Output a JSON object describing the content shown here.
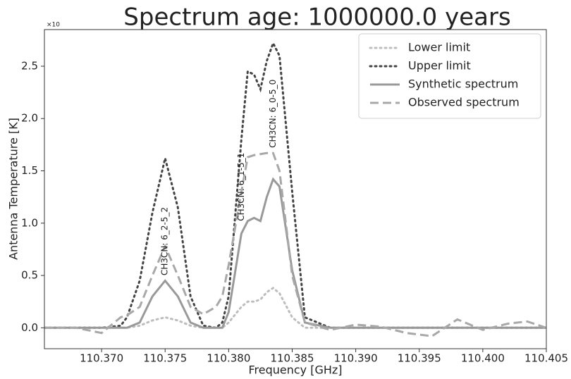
{
  "chart_data": {
    "type": "line",
    "title": "Spectrum  age: 1000000.0 years",
    "offset_text": "×10",
    "x_label": "Frequency [GHz]",
    "y_label": "Antenna Temperature [K]",
    "xlim": [
      110.3655,
      110.405
    ],
    "ylim": [
      -0.2,
      2.85
    ],
    "xticks": [
      {
        "value": 110.37,
        "label": "110.370"
      },
      {
        "value": 110.375,
        "label": "110.375"
      },
      {
        "value": 110.38,
        "label": "110.380"
      },
      {
        "value": 110.385,
        "label": "110.385"
      },
      {
        "value": 110.39,
        "label": "110.390"
      },
      {
        "value": 110.395,
        "label": "110.395"
      },
      {
        "value": 110.4,
        "label": "110.400"
      },
      {
        "value": 110.405,
        "label": "110.405"
      }
    ],
    "yticks": [
      {
        "value": 0,
        "label": "0.0"
      },
      {
        "value": 0.5,
        "label": "0.5"
      },
      {
        "value": 1,
        "label": "1.0"
      },
      {
        "value": 1.5,
        "label": "1.5"
      },
      {
        "value": 2,
        "label": "2.0"
      },
      {
        "value": 2.5,
        "label": "2.5"
      }
    ],
    "legend": "upper right",
    "x": [
      110.3655,
      110.368,
      110.37,
      110.3715,
      110.372,
      110.373,
      110.374,
      110.375,
      110.376,
      110.377,
      110.378,
      110.379,
      110.3795,
      110.38,
      110.381,
      110.3815,
      110.382,
      110.3825,
      110.383,
      110.3835,
      110.384,
      110.385,
      110.386,
      110.388,
      110.39,
      110.392,
      110.394,
      110.396,
      110.398,
      110.4,
      110.402,
      110.4035,
      110.405
    ],
    "series": [
      {
        "name": "Lower limit",
        "color": "#bdbdbd",
        "style": "dotted",
        "values": [
          0,
          0,
          0,
          0,
          0,
          0.02,
          0.07,
          0.1,
          0.07,
          0.02,
          0,
          0,
          0,
          0.05,
          0.2,
          0.25,
          0.25,
          0.27,
          0.34,
          0.38,
          0.33,
          0.1,
          0,
          0,
          0,
          0,
          0,
          0,
          0,
          0,
          0,
          0,
          0
        ]
      },
      {
        "name": "Upper limit",
        "color": "#444444",
        "style": "dotted",
        "values": [
          0,
          0,
          0,
          0.02,
          0.1,
          0.45,
          1.1,
          1.62,
          1.15,
          0.3,
          0.02,
          0,
          0.05,
          0.3,
          1.8,
          2.45,
          2.42,
          2.28,
          2.55,
          2.72,
          2.6,
          1.3,
          0.1,
          0,
          0,
          0,
          0,
          0,
          0,
          0,
          0,
          0,
          0
        ]
      },
      {
        "name": "Synthetic  spectrum",
        "color": "#999999",
        "style": "solid",
        "values": [
          0,
          0,
          0,
          0,
          0,
          0.05,
          0.3,
          0.45,
          0.3,
          0.05,
          0,
          0,
          0,
          0.15,
          0.9,
          1.02,
          1.05,
          1.02,
          1.25,
          1.42,
          1.35,
          0.55,
          0.05,
          0,
          0,
          0,
          0,
          0,
          0,
          0,
          0,
          0,
          0
        ]
      },
      {
        "name": "Observed spectrum",
        "color": "#a8a8a8",
        "style": "dashed",
        "values": [
          0,
          0,
          -0.05,
          0.1,
          0.12,
          0.2,
          0.5,
          0.78,
          0.5,
          0.2,
          0.13,
          0.2,
          0.3,
          0.6,
          1.3,
          1.63,
          1.65,
          1.66,
          1.67,
          1.67,
          1.5,
          0.5,
          0.05,
          -0.02,
          0.03,
          0.01,
          -0.05,
          -0.08,
          0.08,
          -0.02,
          0.04,
          0.06,
          0
        ]
      }
    ],
    "annotations": [
      {
        "text": "CH3CN: 6_2-5_2",
        "x": 110.375,
        "y": 0.5
      },
      {
        "text": "CH3CN: 6_1-5_1",
        "x": 110.381,
        "y": 1.02
      },
      {
        "text": "CH3CN: 6_0-5_0",
        "x": 110.3835,
        "y": 1.72
      }
    ]
  }
}
